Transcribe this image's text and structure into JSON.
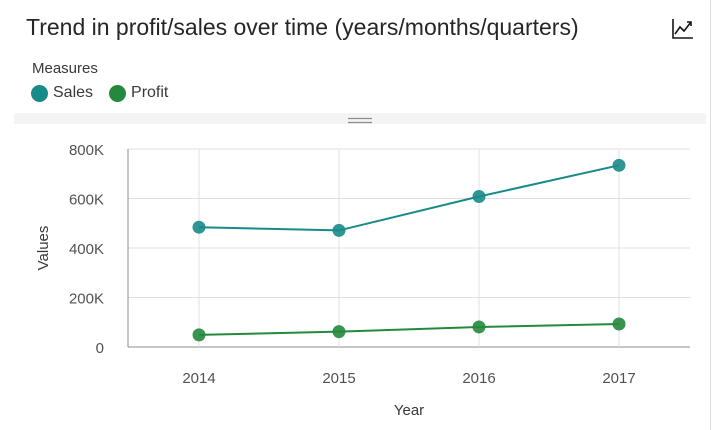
{
  "widget": {
    "title": "Trend in profit/sales over time (years/months/quarters)",
    "chart_type_icon": "line-chart-icon"
  },
  "legend": {
    "title": "Measures",
    "items": [
      {
        "label": "Sales",
        "color": "#198a8a"
      },
      {
        "label": "Profit",
        "color": "#24893d"
      }
    ]
  },
  "colors": {
    "sales": "#198a8a",
    "profit": "#24893d",
    "grid": "#e0e0e0",
    "axis": "#8d8d8d"
  },
  "chart_data": {
    "type": "line",
    "title": "Trend in profit/sales over time (years/months/quarters)",
    "xlabel": "Year",
    "ylabel": "Values",
    "categories": [
      "2014",
      "2015",
      "2016",
      "2017"
    ],
    "ylim": [
      0,
      800000
    ],
    "yticks": [
      0,
      200000,
      400000,
      600000,
      800000
    ],
    "ytick_labels": [
      "0",
      "200K",
      "400K",
      "600K",
      "800K"
    ],
    "grid": true,
    "legend_position": "top-left",
    "series": [
      {
        "name": "Sales",
        "values": [
          484000,
          471000,
          608000,
          734000
        ]
      },
      {
        "name": "Profit",
        "values": [
          49000,
          62000,
          81000,
          93000
        ]
      }
    ]
  }
}
